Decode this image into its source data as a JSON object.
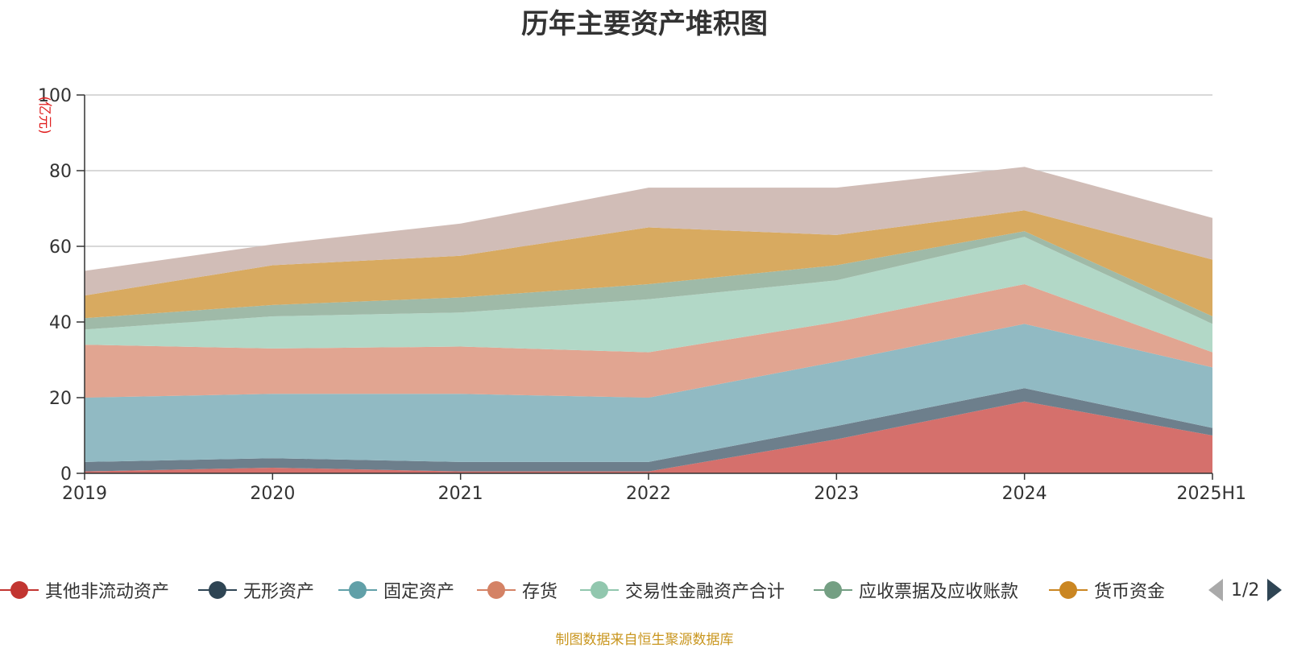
{
  "chart_data": {
    "type": "area",
    "stacked": true,
    "title": "历年主要资产堆积图",
    "ylabel": "(亿元)",
    "xlabel": "",
    "categories": [
      "2019",
      "2020",
      "2021",
      "2022",
      "2023",
      "2024",
      "2025H1"
    ],
    "ylim": [
      0,
      100
    ],
    "yticks": [
      0,
      20,
      40,
      60,
      80,
      100
    ],
    "grid": true,
    "legend_position": "bottom",
    "series": [
      {
        "name": "其他非流动资产",
        "color": "#d5706c",
        "values": [
          0.5,
          1.5,
          0.5,
          0.5,
          9,
          19,
          10
        ]
      },
      {
        "name": "无形资产",
        "color": "#6d7f8c",
        "values": [
          2.5,
          2.5,
          2.5,
          2.5,
          3.5,
          3.5,
          2
        ]
      },
      {
        "name": "固定资产",
        "color": "#91bac3",
        "values": [
          17,
          17,
          18,
          17,
          17,
          17,
          16
        ]
      },
      {
        "name": "存货",
        "color": "#e1a591",
        "values": [
          14,
          12,
          12.5,
          12,
          10.5,
          10.5,
          4
        ]
      },
      {
        "name": "交易性金融资产合计",
        "color": "#b2d8c7",
        "values": [
          4,
          8.5,
          9,
          14,
          11,
          12.5,
          7.5
        ]
      },
      {
        "name": "应收票据及应收账款",
        "color": "#9fbaa8",
        "values": [
          3,
          3,
          4,
          4,
          4,
          1.5,
          2
        ]
      },
      {
        "name": "货币资金",
        "color": "#d8aa60",
        "values": [
          6,
          10.5,
          11,
          15,
          8,
          5.5,
          15
        ]
      },
      {
        "name": "",
        "color": "#d1bdb7",
        "values": [
          6.5,
          5.5,
          8.5,
          10.5,
          12.5,
          11.5,
          11
        ]
      }
    ],
    "legend_visible": [
      {
        "name": "其他非流动资产",
        "color": "#c23531"
      },
      {
        "name": "无形资产",
        "color": "#2f4554"
      },
      {
        "name": "固定资产",
        "color": "#61a0a8"
      },
      {
        "name": "存货",
        "color": "#d48265"
      },
      {
        "name": "交易性金融资产合计",
        "color": "#91c7ae"
      },
      {
        "name": "应收票据及应收账款",
        "color": "#749f83"
      },
      {
        "name": "货币资金",
        "color": "#ca8622"
      }
    ]
  },
  "legend": {
    "page": "1/2"
  },
  "source": "制图数据来自恒生聚源数据库"
}
